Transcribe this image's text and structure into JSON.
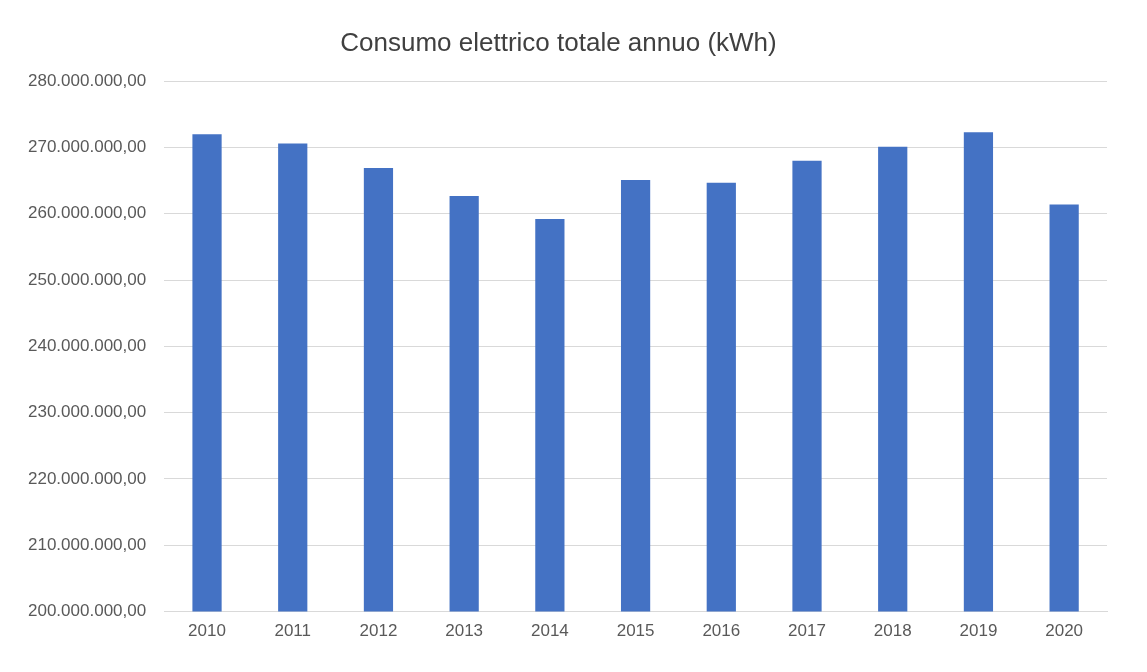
{
  "chart_data": {
    "type": "bar",
    "title": "Consumo elettrico totale annuo (kWh)",
    "categories": [
      "2010",
      "2011",
      "2012",
      "2013",
      "2014",
      "2015",
      "2016",
      "2017",
      "2018",
      "2019",
      "2020"
    ],
    "values": [
      272000000,
      270600000,
      266900000,
      262700000,
      259200000,
      265100000,
      264700000,
      268000000,
      270100000,
      272300000,
      261400000
    ],
    "color": "#4472c4",
    "ylim": [
      200000000,
      280000000
    ],
    "yticks": [
      {
        "value": 200000000,
        "label": "200.000.000,00"
      },
      {
        "value": 210000000,
        "label": "210.000.000,00"
      },
      {
        "value": 220000000,
        "label": "220.000.000,00"
      },
      {
        "value": 230000000,
        "label": "230.000.000,00"
      },
      {
        "value": 240000000,
        "label": "240.000.000,00"
      },
      {
        "value": 250000000,
        "label": "250.000.000,00"
      },
      {
        "value": 260000000,
        "label": "260.000.000,00"
      },
      {
        "value": 270000000,
        "label": "270.000.000,00"
      },
      {
        "value": 280000000,
        "label": "280.000.000,00"
      }
    ],
    "grid": "y",
    "legend": false
  }
}
